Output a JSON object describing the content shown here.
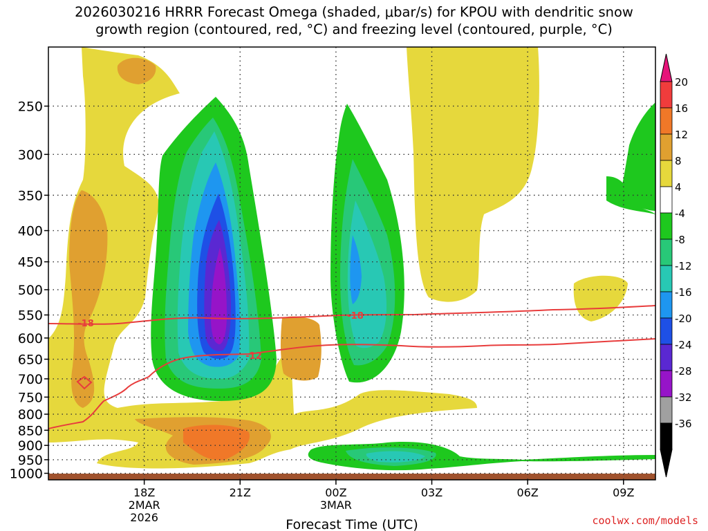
{
  "title_line1": "2026030216 HRRR Forecast Omega (shaded, μbar/s) for KPOU with dendritic snow",
  "title_line2": "growth region (contoured, red, °C) and freezing level (contoured, purple, °C)",
  "credit": "coolwx.com/models",
  "chart_data": {
    "type": "heatmap",
    "title": "2026030216 HRRR Forecast Omega (shaded, μbar/s) for KPOU with dendritic snow growth region (contoured, red, °C) and freezing level (contoured, purple, °C)",
    "xlabel": "Forecast Time (UTC)",
    "ylabel": "",
    "x_range_hours_utc": [
      "2026-03-02 15Z",
      "2026-03-03 10Z"
    ],
    "x_ticks": [
      {
        "label": "18Z",
        "sub": [
          "2MAR",
          "2026"
        ]
      },
      {
        "label": "21Z",
        "sub": []
      },
      {
        "label": "00Z",
        "sub": [
          "3MAR"
        ]
      },
      {
        "label": "03Z",
        "sub": []
      },
      {
        "label": "06Z",
        "sub": []
      },
      {
        "label": "09Z",
        "sub": []
      }
    ],
    "y_ticks": [
      250,
      300,
      350,
      400,
      450,
      500,
      550,
      600,
      650,
      700,
      750,
      800,
      850,
      900,
      950,
      1000
    ],
    "y_scale": "log-pressure",
    "y_range_hpa": [
      1025,
      200
    ],
    "grid": "dotted",
    "colorbar": {
      "labels": [
        "20",
        "16",
        "12",
        "8",
        "4",
        "-4",
        "-8",
        "-12",
        "-16",
        "-20",
        "-24",
        "-28",
        "-32",
        "-36"
      ],
      "colors": [
        "#f03c3c",
        "#f07828",
        "#e0a030",
        "#e6d83c",
        "#ffffff",
        "#1ec81e",
        "#28c878",
        "#28c8b4",
        "#1e96f0",
        "#1e50e6",
        "#5a28d2",
        "#9614c8",
        "#a0a0a0",
        "#000000"
      ],
      "top_arrow_color": "#e6147a",
      "bottom_arrow_color": "#000000"
    },
    "contours": [
      {
        "label": "-18",
        "color": "#e83c3c",
        "points": [
          [
            "15Z",
            580
          ],
          [
            "18Z",
            582
          ],
          [
            "21Z",
            566
          ],
          [
            "00Z",
            568
          ],
          [
            "03Z",
            562
          ],
          [
            "06Z",
            556
          ],
          [
            "09Z",
            550
          ],
          [
            "10Z",
            548
          ]
        ]
      },
      {
        "label": "-12",
        "color": "#e83c3c",
        "points": [
          [
            "15Z",
            870
          ],
          [
            "16.5Z",
            850
          ],
          [
            "17.5Z",
            780
          ],
          [
            "19Z",
            720
          ],
          [
            "21Z",
            655
          ],
          [
            "00Z",
            645
          ],
          [
            "01Z",
            630
          ],
          [
            "03Z",
            632
          ],
          [
            "06Z",
            625
          ],
          [
            "08Z",
            625
          ],
          [
            "10Z",
            618
          ]
        ]
      }
    ],
    "omega_regions_note": "Strongest upward motion (~-24 to -28 μbar/s) near 21Z between 400-600 hPa; secondary maximum (~-12 to -16) near 01Z around 450 hPa; weak descent (+4 to +12) near 18Z low levels and 21Z near 900 hPa."
  }
}
